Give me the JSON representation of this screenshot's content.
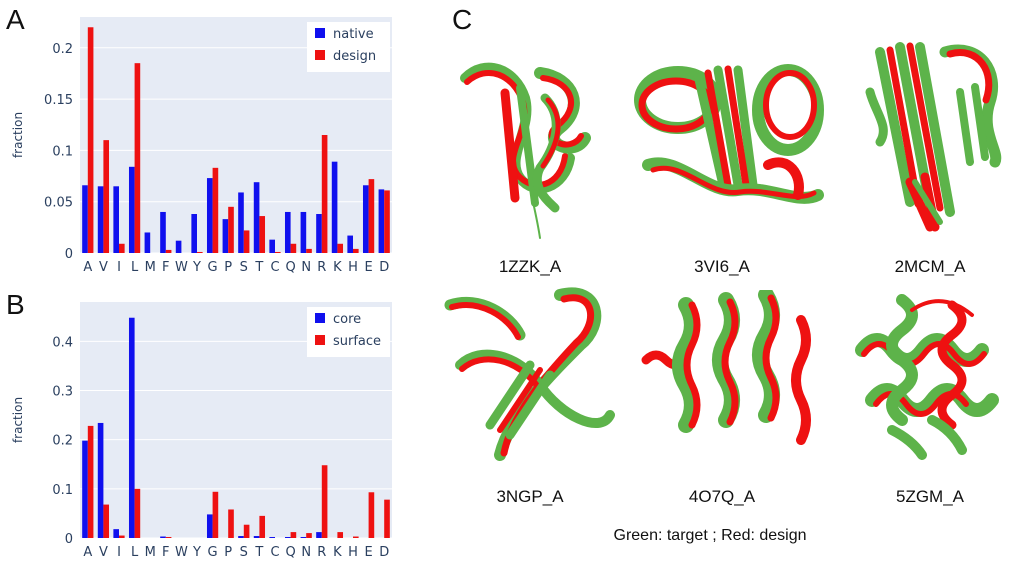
{
  "panels": {
    "a": "A",
    "b": "B",
    "c": "C"
  },
  "colors": {
    "blue": "#1010ee",
    "red": "#ee1111",
    "green": "#5db34a",
    "plot_bg": "#e6ebf5",
    "grid": "#ffffff"
  },
  "chart_data": [
    {
      "type": "bar",
      "panel": "A",
      "categories": [
        "A",
        "V",
        "I",
        "L",
        "M",
        "F",
        "W",
        "Y",
        "G",
        "P",
        "S",
        "T",
        "C",
        "Q",
        "N",
        "R",
        "K",
        "H",
        "E",
        "D"
      ],
      "series": [
        {
          "name": "native",
          "color": "#1010ee",
          "values": [
            0.066,
            0.065,
            0.065,
            0.084,
            0.02,
            0.04,
            0.012,
            0.038,
            0.073,
            0.033,
            0.059,
            0.069,
            0.013,
            0.04,
            0.04,
            0.038,
            0.089,
            0.017,
            0.066,
            0.062
          ]
        },
        {
          "name": "design",
          "color": "#ee1111",
          "values": [
            0.22,
            0.11,
            0.009,
            0.185,
            0.0,
            0.003,
            0.0,
            0.001,
            0.083,
            0.045,
            0.022,
            0.036,
            0.001,
            0.009,
            0.004,
            0.115,
            0.009,
            0.004,
            0.072,
            0.061
          ]
        }
      ],
      "ylabel": "fraction",
      "ylim": [
        0,
        0.23
      ],
      "yticks": [
        0,
        0.05,
        0.1,
        0.15,
        0.2
      ],
      "ytick_labels": [
        "0",
        "0.05",
        "0.1",
        "0.15",
        "0.2"
      ],
      "legend": "top-right",
      "grid": true
    },
    {
      "type": "bar",
      "panel": "B",
      "categories": [
        "A",
        "V",
        "I",
        "L",
        "M",
        "F",
        "W",
        "Y",
        "G",
        "P",
        "S",
        "T",
        "C",
        "Q",
        "N",
        "R",
        "K",
        "H",
        "E",
        "D"
      ],
      "series": [
        {
          "name": "core",
          "color": "#1010ee",
          "values": [
            0.198,
            0.234,
            0.018,
            0.448,
            0.0,
            0.003,
            0.0,
            0.0,
            0.048,
            0.0,
            0.004,
            0.004,
            0.002,
            0.002,
            0.002,
            0.012,
            0.0,
            0.0,
            0.0,
            0.0
          ]
        },
        {
          "name": "surface",
          "color": "#ee1111",
          "values": [
            0.228,
            0.068,
            0.005,
            0.1,
            0.0,
            0.002,
            0.0,
            0.0,
            0.094,
            0.058,
            0.027,
            0.045,
            0.0,
            0.012,
            0.01,
            0.148,
            0.012,
            0.003,
            0.093,
            0.078
          ]
        }
      ],
      "ylabel": "fraction",
      "ylim": [
        0,
        0.48
      ],
      "yticks": [
        0,
        0.1,
        0.2,
        0.3,
        0.4
      ],
      "ytick_labels": [
        "0",
        "0.1",
        "0.2",
        "0.3",
        "0.4"
      ],
      "legend": "top-right",
      "grid": true
    }
  ],
  "structures": [
    {
      "label": "1ZZK_A",
      "icon": "protein-alpha-beta-icon"
    },
    {
      "label": "3VI6_A",
      "icon": "protein-alpha-beta-icon"
    },
    {
      "label": "2MCM_A",
      "icon": "protein-beta-icon"
    },
    {
      "label": "3NGP_A",
      "icon": "protein-beta-icon"
    },
    {
      "label": "4O7Q_A",
      "icon": "protein-helix-bundle-icon"
    },
    {
      "label": "5ZGM_A",
      "icon": "protein-globular-icon"
    }
  ],
  "caption": "Green: target ; Red: design"
}
